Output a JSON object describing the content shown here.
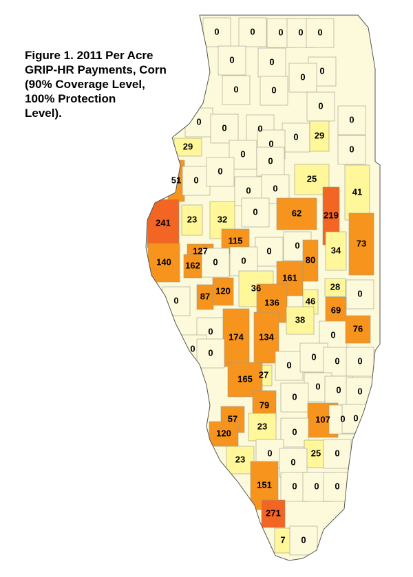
{
  "title_lines": [
    "Figure 1.  2011 Per Acre",
    "GRIP-HR Payments, Corn",
    "(90% Coverage Level,",
    "100% Protection",
    "Level)."
  ],
  "counties": [
    {
      "value": 0,
      "color": "#fdfadb"
    },
    {
      "value": 0,
      "color": "#fdfadb"
    },
    {
      "value": 0,
      "color": "#fdfadb"
    },
    {
      "value": 0,
      "color": "#fdfadb"
    },
    {
      "value": 0,
      "color": "#fdfadb"
    },
    {
      "value": 0,
      "color": "#fdfadb"
    },
    {
      "value": 0,
      "color": "#fdfadb"
    },
    {
      "value": 0,
      "color": "#fdfadb"
    },
    {
      "value": 0,
      "color": "#fdfadb"
    },
    {
      "value": 0,
      "color": "#fdfadb"
    },
    {
      "value": 0,
      "color": "#fdfadb"
    },
    {
      "value": 0,
      "color": "#fdfadb"
    },
    {
      "value": 0,
      "color": "#fdfadb"
    },
    {
      "value": 0,
      "color": "#fdfadb"
    },
    {
      "value": 0,
      "color": "#fdfadb"
    },
    {
      "value": 0,
      "color": "#fdfadb"
    },
    {
      "value": 0,
      "color": "#fdfadb"
    },
    {
      "value": 0,
      "color": "#fdfadb"
    },
    {
      "value": 29,
      "color": "#fff79a"
    },
    {
      "value": 0,
      "color": "#fdfadb"
    },
    {
      "value": 29,
      "color": "#fff79a"
    },
    {
      "value": 0,
      "color": "#fdfadb"
    },
    {
      "value": 0,
      "color": "#fdfadb"
    },
    {
      "value": 51,
      "color": "#f7941e"
    },
    {
      "value": 0,
      "color": "#fdfadb"
    },
    {
      "value": 0,
      "color": "#fdfadb"
    },
    {
      "value": 25,
      "color": "#fff79a"
    },
    {
      "value": 41,
      "color": "#fff79a"
    },
    {
      "value": 0,
      "color": "#fdfadb"
    },
    {
      "value": 0,
      "color": "#fdfadb"
    },
    {
      "value": 0,
      "color": "#fdfadb"
    },
    {
      "value": 241,
      "color": "#f26522"
    },
    {
      "value": 23,
      "color": "#fff79a"
    },
    {
      "value": 32,
      "color": "#fff79a"
    },
    {
      "value": 62,
      "color": "#f7941e"
    },
    {
      "value": 219,
      "color": "#f26522"
    },
    {
      "value": 127,
      "color": "#f7941e"
    },
    {
      "value": 115,
      "color": "#f7941e"
    },
    {
      "value": 0,
      "color": "#fdfadb"
    },
    {
      "value": 0,
      "color": "#fdfadb"
    },
    {
      "value": 80,
      "color": "#f7941e"
    },
    {
      "value": 34,
      "color": "#fff79a"
    },
    {
      "value": 73,
      "color": "#f7941e"
    },
    {
      "value": 140,
      "color": "#f7941e"
    },
    {
      "value": 162,
      "color": "#f7941e"
    },
    {
      "value": 0,
      "color": "#fdfadb"
    },
    {
      "value": 0,
      "color": "#fdfadb"
    },
    {
      "value": 161,
      "color": "#f7941e"
    },
    {
      "value": 36,
      "color": "#fff79a"
    },
    {
      "value": 28,
      "color": "#fff79a"
    },
    {
      "value": 0,
      "color": "#fdfadb"
    },
    {
      "value": 87,
      "color": "#f7941e"
    },
    {
      "value": 120,
      "color": "#f7941e"
    },
    {
      "value": 136,
      "color": "#f7941e"
    },
    {
      "value": 46,
      "color": "#fff79a"
    },
    {
      "value": 69,
      "color": "#f7941e"
    },
    {
      "value": 0,
      "color": "#fdfadb"
    },
    {
      "value": 38,
      "color": "#fff79a"
    },
    {
      "value": 0,
      "color": "#fdfadb"
    },
    {
      "value": 174,
      "color": "#f7941e"
    },
    {
      "value": 134,
      "color": "#f7941e"
    },
    {
      "value": 0,
      "color": "#fdfadb"
    },
    {
      "value": 76,
      "color": "#f7941e"
    },
    {
      "value": 0,
      "color": "#fdfadb"
    },
    {
      "value": 0,
      "color": "#fdfadb"
    },
    {
      "value": 0,
      "color": "#fdfadb"
    },
    {
      "value": 0,
      "color": "#fdfadb"
    },
    {
      "value": 0,
      "color": "#fdfadb"
    },
    {
      "value": 0,
      "color": "#fdfadb"
    },
    {
      "value": 27,
      "color": "#fff79a"
    },
    {
      "value": 165,
      "color": "#f7941e"
    },
    {
      "value": 0,
      "color": "#fdfadb"
    },
    {
      "value": 0,
      "color": "#fdfadb"
    },
    {
      "value": 0,
      "color": "#fdfadb"
    },
    {
      "value": 0,
      "color": "#fdfadb"
    },
    {
      "value": 79,
      "color": "#f7941e"
    },
    {
      "value": 57,
      "color": "#f7941e"
    },
    {
      "value": 107,
      "color": "#f7941e"
    },
    {
      "value": 0,
      "color": "#fdfadb"
    },
    {
      "value": 0,
      "color": "#fdfadb"
    },
    {
      "value": 120,
      "color": "#f7941e"
    },
    {
      "value": 23,
      "color": "#fff79a"
    },
    {
      "value": 0,
      "color": "#fdfadb"
    },
    {
      "value": 23,
      "color": "#fff79a"
    },
    {
      "value": 0,
      "color": "#fdfadb"
    },
    {
      "value": 25,
      "color": "#fff79a"
    },
    {
      "value": 0,
      "color": "#fdfadb"
    },
    {
      "value": 0,
      "color": "#fdfadb"
    },
    {
      "value": 151,
      "color": "#f7941e"
    },
    {
      "value": 0,
      "color": "#fdfadb"
    },
    {
      "value": 0,
      "color": "#fdfadb"
    },
    {
      "value": 0,
      "color": "#fdfadb"
    },
    {
      "value": 271,
      "color": "#f26522"
    },
    {
      "value": 7,
      "color": "#fff79a"
    },
    {
      "value": 0,
      "color": "#fdfadb"
    }
  ]
}
